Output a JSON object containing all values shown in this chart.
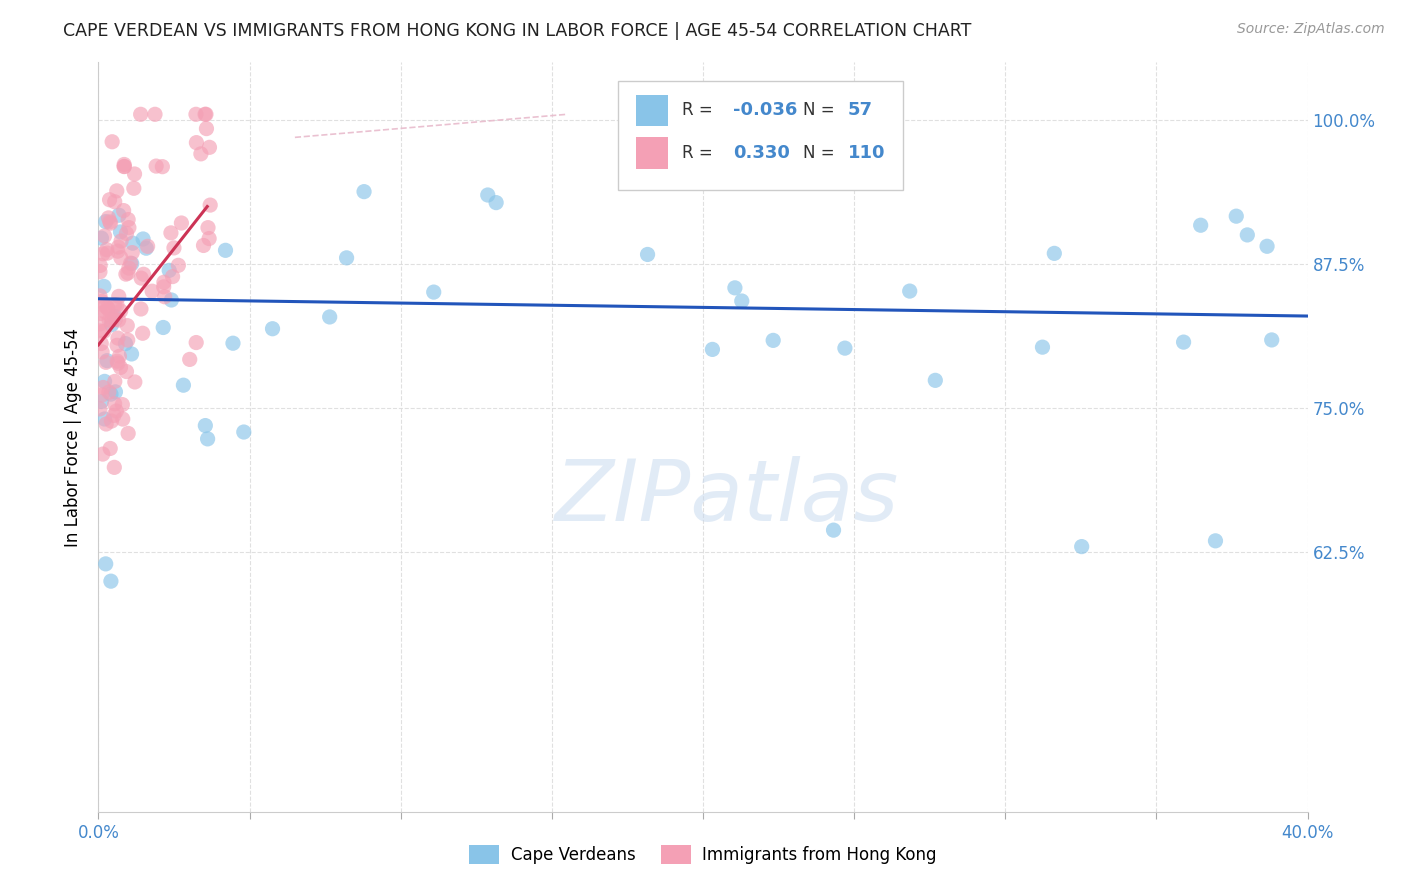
{
  "title": "CAPE VERDEAN VS IMMIGRANTS FROM HONG KONG IN LABOR FORCE | AGE 45-54 CORRELATION CHART",
  "source": "Source: ZipAtlas.com",
  "ylabel": "In Labor Force | Age 45-54",
  "xlim": [
    0.0,
    0.4
  ],
  "ylim": [
    0.4,
    1.05
  ],
  "xtick_positions": [
    0.0,
    0.05,
    0.1,
    0.15,
    0.2,
    0.25,
    0.3,
    0.35,
    0.4
  ],
  "xticklabels": [
    "0.0%",
    "",
    "",
    "",
    "",
    "",
    "",
    "",
    "40.0%"
  ],
  "ytick_positions": [
    0.625,
    0.75,
    0.875,
    1.0
  ],
  "yticklabels": [
    "62.5%",
    "75.0%",
    "87.5%",
    "100.0%"
  ],
  "blue_color": "#89C4E8",
  "pink_color": "#F4A0B5",
  "trend_blue_color": "#2255BB",
  "trend_pink_color": "#CC3355",
  "diag_color": "#E8BBCC",
  "watermark": "ZIPatlas",
  "watermark_color": "#C5D8EE",
  "legend_r_blue": "-0.036",
  "legend_n_blue": "57",
  "legend_r_pink": "0.330",
  "legend_n_pink": "110",
  "tick_color": "#4488CC",
  "grid_color": "#DDDDDD",
  "title_color": "#222222",
  "source_color": "#999999"
}
